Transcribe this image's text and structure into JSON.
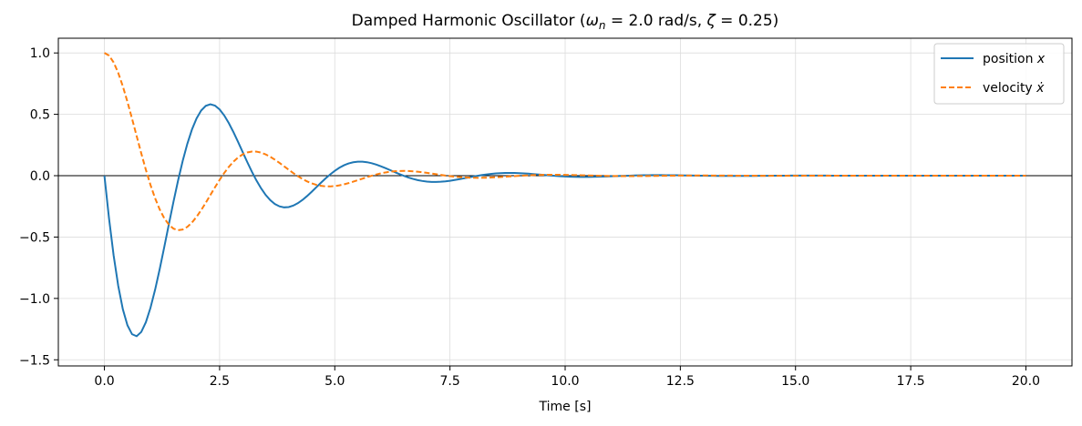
{
  "chart_data": {
    "type": "line",
    "title": "Damped Harmonic Oscillator  (ωn = 2.0 rad/s, ζ = 0.25)",
    "title_parts": {
      "prefix": "Damped Harmonic Oscillator  (",
      "omega_symbol": "ω",
      "omega_subscript": "n",
      "omega_value": " = 2.0 rad/s, ",
      "zeta_symbol": "ζ",
      "zeta_value": " = 0.25)"
    },
    "xlabel": "Time [s]",
    "ylabel": "",
    "xlim": [
      -1.0,
      21.0
    ],
    "ylim": [
      -1.55,
      1.12
    ],
    "xticks": [
      0.0,
      2.5,
      5.0,
      7.5,
      10.0,
      12.5,
      15.0,
      17.5,
      20.0
    ],
    "xtick_labels": [
      "0.0",
      "2.5",
      "5.0",
      "7.5",
      "10.0",
      "12.5",
      "15.0",
      "17.5",
      "20.0"
    ],
    "yticks": [
      -1.5,
      -1.0,
      -0.5,
      0.0,
      0.5,
      1.0
    ],
    "ytick_labels": [
      "−1.5",
      "−1.0",
      "−0.5",
      "0.0",
      "0.5",
      "1.0"
    ],
    "grid": true,
    "zero_line": true,
    "legend_position": "top-right",
    "model": {
      "omega_n": 2.0,
      "zeta": 0.25,
      "t_start": 0,
      "t_end": 20,
      "samples": 201
    },
    "series": [
      {
        "name": "position x",
        "label_main": "position ",
        "label_symbol": "x",
        "color": "#1f77b4",
        "style": "solid",
        "key": "x"
      },
      {
        "name": "velocity ẋ",
        "label_main": "velocity ",
        "label_symbol": "ẋ",
        "color": "#ff7f0e",
        "style": "dashed",
        "key": "v"
      }
    ]
  },
  "colors": {
    "position": "#1f77b4",
    "velocity": "#ff7f0e",
    "grid": "#dcdcdc",
    "axes": "#000000"
  }
}
